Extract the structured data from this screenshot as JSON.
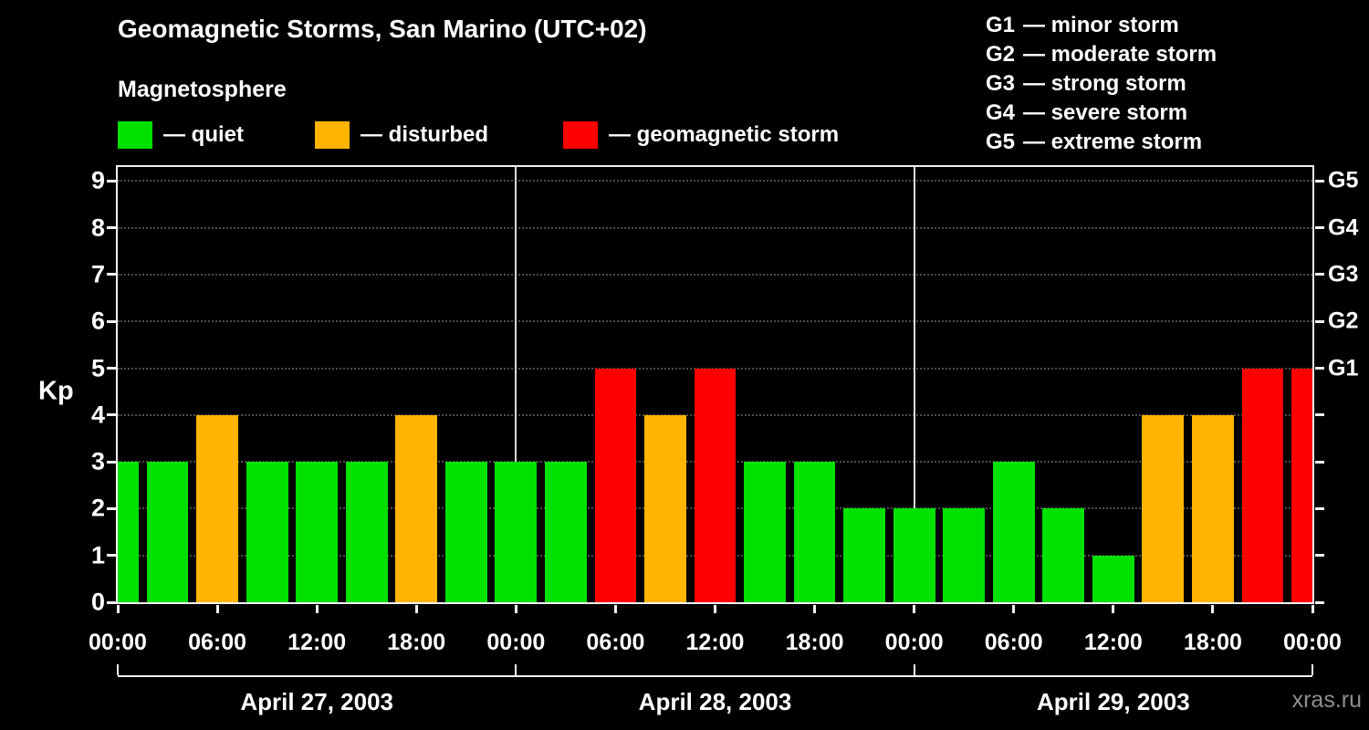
{
  "header": {
    "title": "Geomagnetic Storms, San Marino (UTC+02)",
    "subtitle": "Magnetosphere"
  },
  "legend": {
    "items": [
      {
        "key": "quiet",
        "label": "— quiet",
        "color": "#00e100"
      },
      {
        "key": "disturbed",
        "label": "— disturbed",
        "color": "#ffb400"
      },
      {
        "key": "storm",
        "label": "— geomagnetic storm",
        "color": "#fe0000"
      }
    ]
  },
  "storm_scale": {
    "items": [
      {
        "code": "G1",
        "label": "— minor storm"
      },
      {
        "code": "G2",
        "label": "— moderate storm"
      },
      {
        "code": "G3",
        "label": "— strong storm"
      },
      {
        "code": "G4",
        "label": "— severe storm"
      },
      {
        "code": "G5",
        "label": "— extreme storm"
      }
    ]
  },
  "chart_data": {
    "type": "bar",
    "title": "Geomagnetic Storms, San Marino (UTC+02)",
    "subtitle": "Magnetosphere",
    "ylabel": "Kp",
    "xlabel": "",
    "ylim": [
      0,
      9.3
    ],
    "y_ticks": [
      0,
      1,
      2,
      3,
      4,
      5,
      6,
      7,
      8,
      9
    ],
    "right_axis_ticks": [
      {
        "kp": 5,
        "label": "G1"
      },
      {
        "kp": 6,
        "label": "G2"
      },
      {
        "kp": 7,
        "label": "G3"
      },
      {
        "kp": 8,
        "label": "G4"
      },
      {
        "kp": 9,
        "label": "G5"
      }
    ],
    "interval_hours": 3,
    "days": [
      {
        "date": "April 27, 2003",
        "kp_values": [
          3,
          3,
          4,
          3,
          3,
          3,
          4,
          3
        ]
      },
      {
        "date": "April 28, 2003",
        "kp_values": [
          3,
          3,
          5,
          4,
          5,
          3,
          3,
          2
        ]
      },
      {
        "date": "April 29, 2003",
        "kp_values": [
          2,
          2,
          3,
          2,
          1,
          4,
          4,
          5
        ]
      }
    ],
    "next_partial_value": 5,
    "time_tick_labels": [
      "00:00",
      "06:00",
      "12:00",
      "18:00",
      "00:00",
      "06:00",
      "12:00",
      "18:00",
      "00:00",
      "06:00",
      "12:00",
      "18:00",
      "00:00"
    ],
    "color_thresholds": {
      "quiet_max_kp": 3,
      "disturbed_kp": 4,
      "storm_min_kp": 5
    },
    "colors": {
      "quiet": "#00e100",
      "disturbed": "#ffb400",
      "storm": "#fe0000"
    },
    "grid": "horizontal-dotted",
    "legend_position": "top-left"
  },
  "watermark": "xras.ru"
}
